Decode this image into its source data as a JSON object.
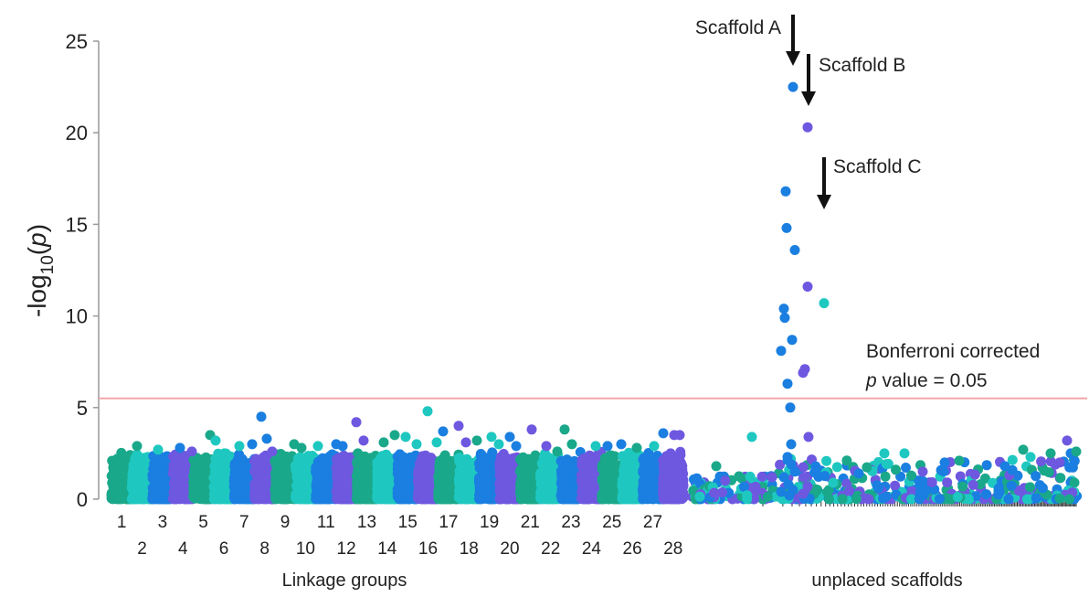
{
  "chart_data": {
    "type": "scatter",
    "title": "",
    "ylabel_main": "-log",
    "ylabel_sub": "10",
    "ylabel_tail": "(p)",
    "ylim": [
      0,
      25
    ],
    "yticks": [
      0,
      5,
      10,
      15,
      20,
      25
    ],
    "grid": false,
    "palette": [
      "#1aa88a",
      "#1ec8c0",
      "#1a7fe0",
      "#6e58e0"
    ],
    "threshold": {
      "value": 5.5,
      "color": "#f2a6a6",
      "label_line1": "Bonferroni corrected",
      "label_line2_italic": "p",
      "label_line2_rest": " value = 0.05"
    },
    "linkage_group_labels_top": [
      "1",
      "3",
      "5",
      "7",
      "9",
      "11",
      "13",
      "15",
      "17",
      "19",
      "21",
      "23",
      "25",
      "27"
    ],
    "linkage_group_labels_bottom": [
      "2",
      "4",
      "6",
      "8",
      "10",
      "12",
      "14",
      "16",
      "18",
      "20",
      "22",
      "24",
      "26",
      "28"
    ],
    "group_labels": {
      "linkage": "Linkage groups",
      "unplaced": "unplaced scaffolds"
    },
    "annotations": [
      {
        "label": "Scaffold A",
        "y": 22.5
      },
      {
        "label": "Scaffold B",
        "y": 20.3
      },
      {
        "label": "Scaffold C",
        "y": 10.7
      }
    ],
    "notable_points": [
      {
        "group": "LG7",
        "y": 4.5
      },
      {
        "group": "LG12",
        "y": 4.2
      },
      {
        "group": "LG15",
        "y": 4.8
      },
      {
        "group": "LG16",
        "y": 4.0
      },
      {
        "group": "LG20",
        "y": 3.8
      },
      {
        "group": "LG21",
        "y": 3.8
      },
      {
        "group": "Scaffold A",
        "y": 22.5
      },
      {
        "group": "Scaffold A",
        "y": 16.8
      },
      {
        "group": "Scaffold A",
        "y": 14.8
      },
      {
        "group": "Scaffold A",
        "y": 13.6
      },
      {
        "group": "Scaffold A",
        "y": 10.4
      },
      {
        "group": "Scaffold A",
        "y": 9.9
      },
      {
        "group": "Scaffold A",
        "y": 8.7
      },
      {
        "group": "Scaffold A",
        "y": 8.1
      },
      {
        "group": "Scaffold A",
        "y": 6.3
      },
      {
        "group": "Scaffold A",
        "y": 5.0
      },
      {
        "group": "Scaffold A",
        "y": 3.0
      },
      {
        "group": "Scaffold B",
        "y": 20.3
      },
      {
        "group": "Scaffold B",
        "y": 11.6
      },
      {
        "group": "Scaffold B",
        "y": 7.1
      },
      {
        "group": "Scaffold B",
        "y": 6.9
      },
      {
        "group": "Scaffold B",
        "y": 3.4
      },
      {
        "group": "Scaffold C",
        "y": 10.7
      }
    ]
  }
}
